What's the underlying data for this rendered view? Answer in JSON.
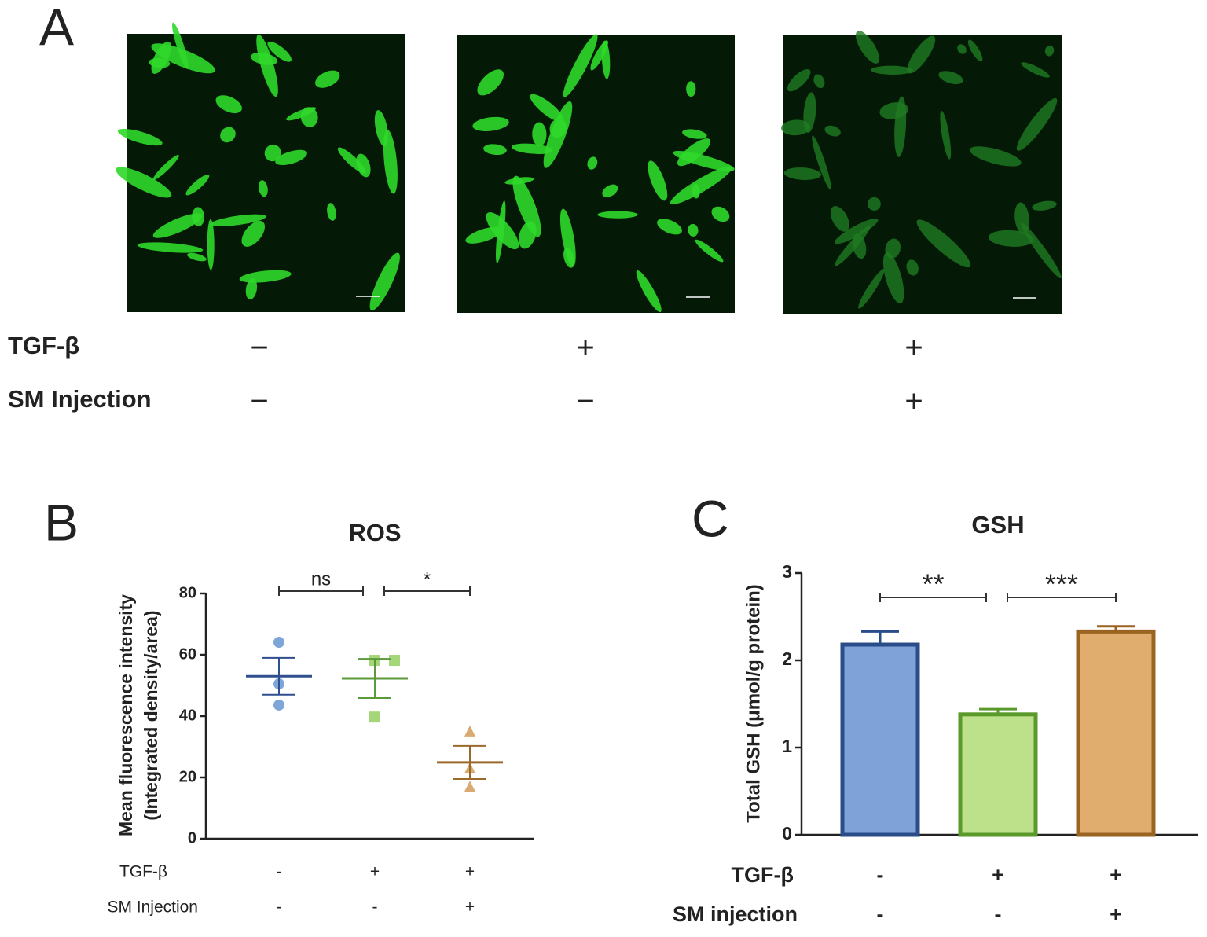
{
  "panel_a": {
    "panel_label": "A",
    "rows": [
      {
        "label": "TGF-β",
        "signs": [
          "−",
          "+",
          "+"
        ]
      },
      {
        "label": "SM Injection",
        "signs": [
          "−",
          "−",
          "+"
        ]
      }
    ]
  },
  "chart_data": [
    {
      "type": "dot",
      "panel_label": "B",
      "title": "ROS",
      "y_label": [
        "Mean fluorescence intensity",
        "(Integrated density/area)"
      ],
      "ylim": [
        0,
        80
      ],
      "yticks": [
        0,
        20,
        40,
        60,
        80
      ],
      "conditions": [
        {
          "label": "TGF-β",
          "signs": [
            "-",
            "+",
            "+"
          ]
        },
        {
          "label": "SM Injection",
          "signs": [
            "-",
            "-",
            "+"
          ]
        }
      ],
      "series": [
        {
          "color": "#7fa6d8",
          "mean_color": "#2f4f8f",
          "values": [
            64.1,
            50.5,
            43.6
          ],
          "mean": 53,
          "sem": 6
        },
        {
          "color": "#a6d67a",
          "mean_color": "#5a9a3a",
          "values": [
            58.2,
            58.2,
            39.7
          ],
          "mean": 52.3,
          "sem": 6.4
        },
        {
          "color": "#d9aa72",
          "mean_color": "#9a6a2a",
          "values": [
            34.9,
            22.9,
            16.9
          ],
          "mean": 24.9,
          "sem": 5.4
        }
      ],
      "annotations": [
        "ns",
        "*"
      ]
    },
    {
      "type": "bar",
      "panel_label": "C",
      "title": "GSH",
      "y_label": [
        "Total GSH (μmol/g protein)"
      ],
      "ylim": [
        0,
        3
      ],
      "yticks": [
        0,
        1,
        2,
        3
      ],
      "conditions": [
        {
          "label": "TGF-β",
          "signs": [
            "-",
            "+",
            "+"
          ]
        },
        {
          "label": "SM injection",
          "signs": [
            "-",
            "-",
            "+"
          ]
        }
      ],
      "values": [
        2.18,
        1.38,
        2.33
      ],
      "errors": [
        0.15,
        0.06,
        0.06
      ],
      "colors": [
        "#7fa3d9",
        "#bde08a",
        "#e0ad6e"
      ],
      "edge_colors": [
        "#2a4d8a",
        "#5a9a2a",
        "#9a6420"
      ],
      "annotations": [
        "**",
        "***"
      ]
    }
  ]
}
